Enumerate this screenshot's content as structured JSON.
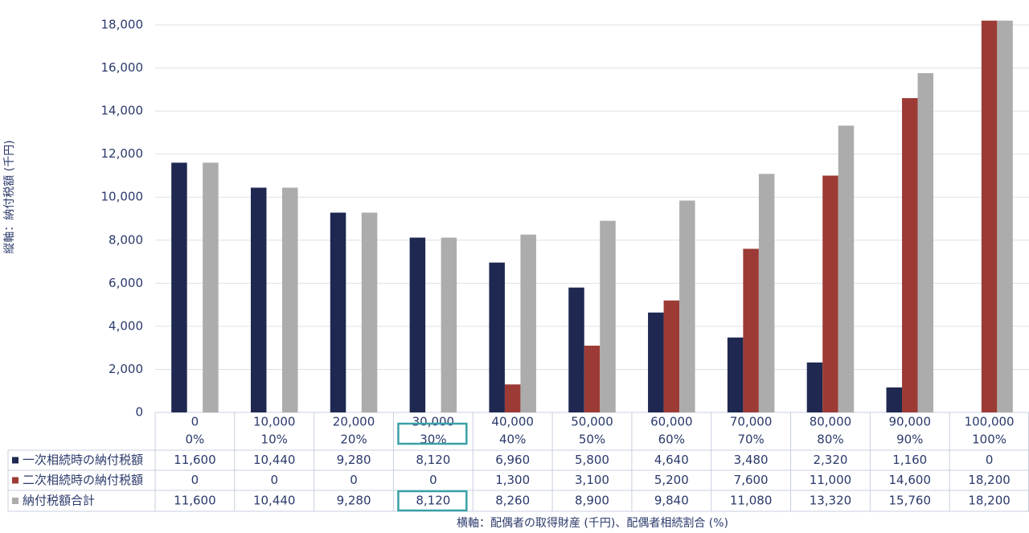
{
  "chart_data": {
    "type": "bar",
    "y_axis_label": "縦軸：納付税額 (千円)",
    "x_axis_label": "横軸：配偶者の取得財産 (千円)、配偶者相続割合 (%)",
    "categories": [
      [
        "0",
        "0%"
      ],
      [
        "10,000",
        "10%"
      ],
      [
        "20,000",
        "20%"
      ],
      [
        "30,000",
        "30%"
      ],
      [
        "40,000",
        "40%"
      ],
      [
        "50,000",
        "50%"
      ],
      [
        "60,000",
        "60%"
      ],
      [
        "70,000",
        "70%"
      ],
      [
        "80,000",
        "80%"
      ],
      [
        "90,000",
        "90%"
      ],
      [
        "100,000",
        "100%"
      ]
    ],
    "series": [
      {
        "name": "一次相続時の納付税額",
        "color": "#1e2850",
        "values": [
          11600,
          10440,
          9280,
          8120,
          6960,
          5800,
          4640,
          3480,
          2320,
          1160,
          0
        ],
        "value_labels": [
          "11,600",
          "10,440",
          "9,280",
          "8,120",
          "6,960",
          "5,800",
          "4,640",
          "3,480",
          "2,320",
          "1,160",
          "0"
        ]
      },
      {
        "name": "二次相続時の納付税額",
        "color": "#9c3b36",
        "values": [
          0,
          0,
          0,
          0,
          1300,
          3100,
          5200,
          7600,
          11000,
          14600,
          18200
        ],
        "value_labels": [
          "0",
          "0",
          "0",
          "0",
          "1,300",
          "3,100",
          "5,200",
          "7,600",
          "11,000",
          "14,600",
          "18,200"
        ]
      },
      {
        "name": "納付税額合計",
        "color": "#acacac",
        "values": [
          11600,
          10440,
          9280,
          8120,
          8260,
          8900,
          9840,
          11080,
          13320,
          15760,
          18200
        ],
        "value_labels": [
          "11,600",
          "10,440",
          "9,280",
          "8,120",
          "8,260",
          "8,900",
          "9,840",
          "11,080",
          "13,320",
          "15,760",
          "18,200"
        ]
      }
    ],
    "ylim": [
      0,
      18000
    ],
    "yticks": [
      0,
      {
        "value": 2000,
        "label": "2,000"
      },
      {
        "value": 4000,
        "label": "4,000"
      },
      {
        "value": 6000,
        "label": "6,000"
      },
      {
        "value": 8000,
        "label": "8,000"
      },
      {
        "value": 10000,
        "label": "10,000"
      },
      {
        "value": 12000,
        "label": "12,000"
      },
      {
        "value": 14000,
        "label": "14,000"
      },
      {
        "value": 16000,
        "label": "16,000"
      },
      {
        "value": 18000,
        "label": "18,000"
      }
    ],
    "grid": true
  }
}
